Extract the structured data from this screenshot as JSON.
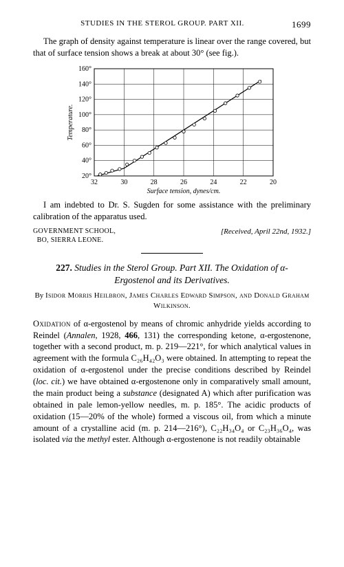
{
  "header": {
    "running": "STUDIES IN THE STEROL GROUP.  PART XII.",
    "page": "1699"
  },
  "para1": "The graph of density against temperature is linear over the range covered, but that of surface tension shows a break at about 30° (see fig.).",
  "chart": {
    "type": "scatter-line",
    "background_color": "#ffffff",
    "grid_color": "#000000",
    "axis_color": "#000000",
    "point_stroke": "#000000",
    "point_fill": "#ffffff",
    "line_color": "#000000",
    "point_radius": 2.2,
    "line_width": 1.2,
    "grid_width": 0.5,
    "xlabel": "Surface tension, dynes/cm.",
    "ylabel": "Temperature.",
    "label_fontsize": 10,
    "label_font_style": "italic",
    "tick_fontsize": 10,
    "x_reversed": true,
    "xlim": [
      32,
      20
    ],
    "ylim": [
      20,
      160
    ],
    "xticks": [
      32,
      30,
      28,
      26,
      24,
      22,
      20
    ],
    "yticks": [
      20,
      40,
      60,
      80,
      100,
      120,
      140,
      160
    ],
    "yticklabels": [
      "20°",
      "40°",
      "60°",
      "80°",
      "100°",
      "120°",
      "140°",
      "160°"
    ],
    "series": {
      "points": [
        {
          "x": 31.6,
          "y": 22
        },
        {
          "x": 31.2,
          "y": 24
        },
        {
          "x": 30.8,
          "y": 27
        },
        {
          "x": 30.3,
          "y": 29
        },
        {
          "x": 29.8,
          "y": 35
        },
        {
          "x": 29.3,
          "y": 40
        },
        {
          "x": 28.8,
          "y": 45
        },
        {
          "x": 28.3,
          "y": 50
        },
        {
          "x": 27.8,
          "y": 57
        },
        {
          "x": 27.2,
          "y": 63
        },
        {
          "x": 26.6,
          "y": 70
        },
        {
          "x": 26.0,
          "y": 78
        },
        {
          "x": 25.3,
          "y": 87
        },
        {
          "x": 24.6,
          "y": 95
        },
        {
          "x": 23.9,
          "y": 105
        },
        {
          "x": 23.2,
          "y": 115
        },
        {
          "x": 22.4,
          "y": 125
        },
        {
          "x": 21.6,
          "y": 135
        },
        {
          "x": 20.9,
          "y": 143
        }
      ],
      "line": [
        {
          "x": 31.8,
          "y": 20
        },
        {
          "x": 30.0,
          "y": 30
        },
        {
          "x": 20.8,
          "y": 145
        }
      ]
    }
  },
  "para2": "I am indebted to Dr. S. Sugden for some assistance with the preliminary calibration of the apparatus used.",
  "affiliation": {
    "line1": "GOVERNMENT SCHOOL,",
    "line2": "BO, SIERRA LEONE.",
    "received": "[Received, April 22nd, 1932.]"
  },
  "article": {
    "number": "227.",
    "title": "Studies in the Sterol Group.  Part XII.  The Oxidation of α-Ergostenol and its Derivatives.",
    "authors_prefix": "By ",
    "authors": "Isidor Morris Heilbron, James Charles Edward Simpson, and Donald Graham Wilkinson.",
    "body": "OXIDATION of α-ergostenol by means of chromic anhydride yields according to Reindel (Annalen, 1928, 466, 131) the corresponding ketone, α-ergostenone, together with a second product, m. p. 219—221°, for which analytical values in agreement with the formula C₂₆H₄₂O₃ were obtained. In attempting to repeat the oxidation of α-ergostenol under the precise conditions described by Reindel (loc. cit.) we have obtained α-ergostenone only in comparatively small amount, the main product being a substance (designated A) which after purification was obtained in pale lemon-yellow needles, m. p. 185°.  The acidic products of oxidation (15—20% of the whole) formed a viscous oil, from which a minute amount of a crystalline acid (m. p. 214—216°), C₂₂H₃₄O₄ or C₂₃H₃₆O₄, was isolated via the methyl ester.  Although α-ergostenone is not readily obtainable"
  }
}
